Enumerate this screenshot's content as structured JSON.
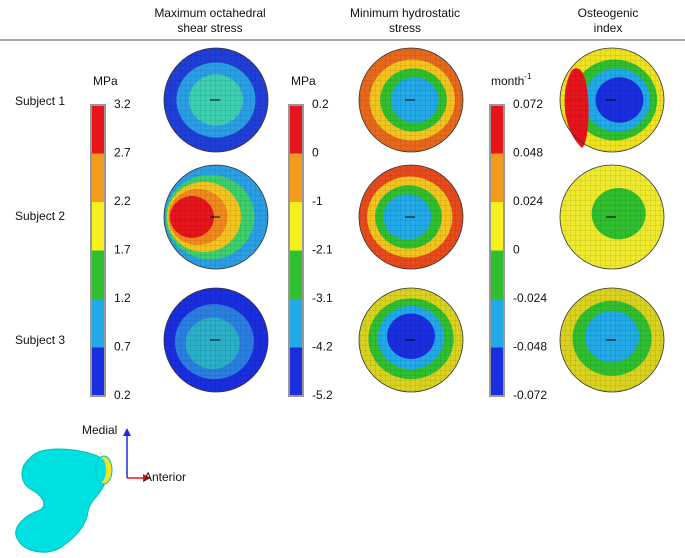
{
  "column_headers": [
    [
      "Maximum octahedral",
      "shear stress"
    ],
    [
      "Minimum hydrostatic",
      "stress"
    ],
    [
      "Osteogenic",
      "index"
    ]
  ],
  "row_labels": [
    "Subject 1",
    "Subject 2",
    "Subject 3"
  ],
  "colorbars": [
    {
      "unit": "MPa",
      "ticks": [
        "3.2",
        "2.7",
        "2.2",
        "1.7",
        "1.2",
        "0.7",
        "0.2"
      ]
    },
    {
      "unit": "MPa",
      "ticks": [
        "0.2",
        "0",
        "-1",
        "-2.1",
        "-3.1",
        "-4.2",
        "-5.2"
      ]
    },
    {
      "unit": {
        "base": "month",
        "sup": "-1"
      },
      "ticks": [
        "0.072",
        "0.048",
        "0.024",
        "0",
        "-0.024",
        "-0.048",
        "-0.072"
      ]
    }
  ],
  "orientation": {
    "up": "Medial",
    "right": "Anterior"
  }
}
